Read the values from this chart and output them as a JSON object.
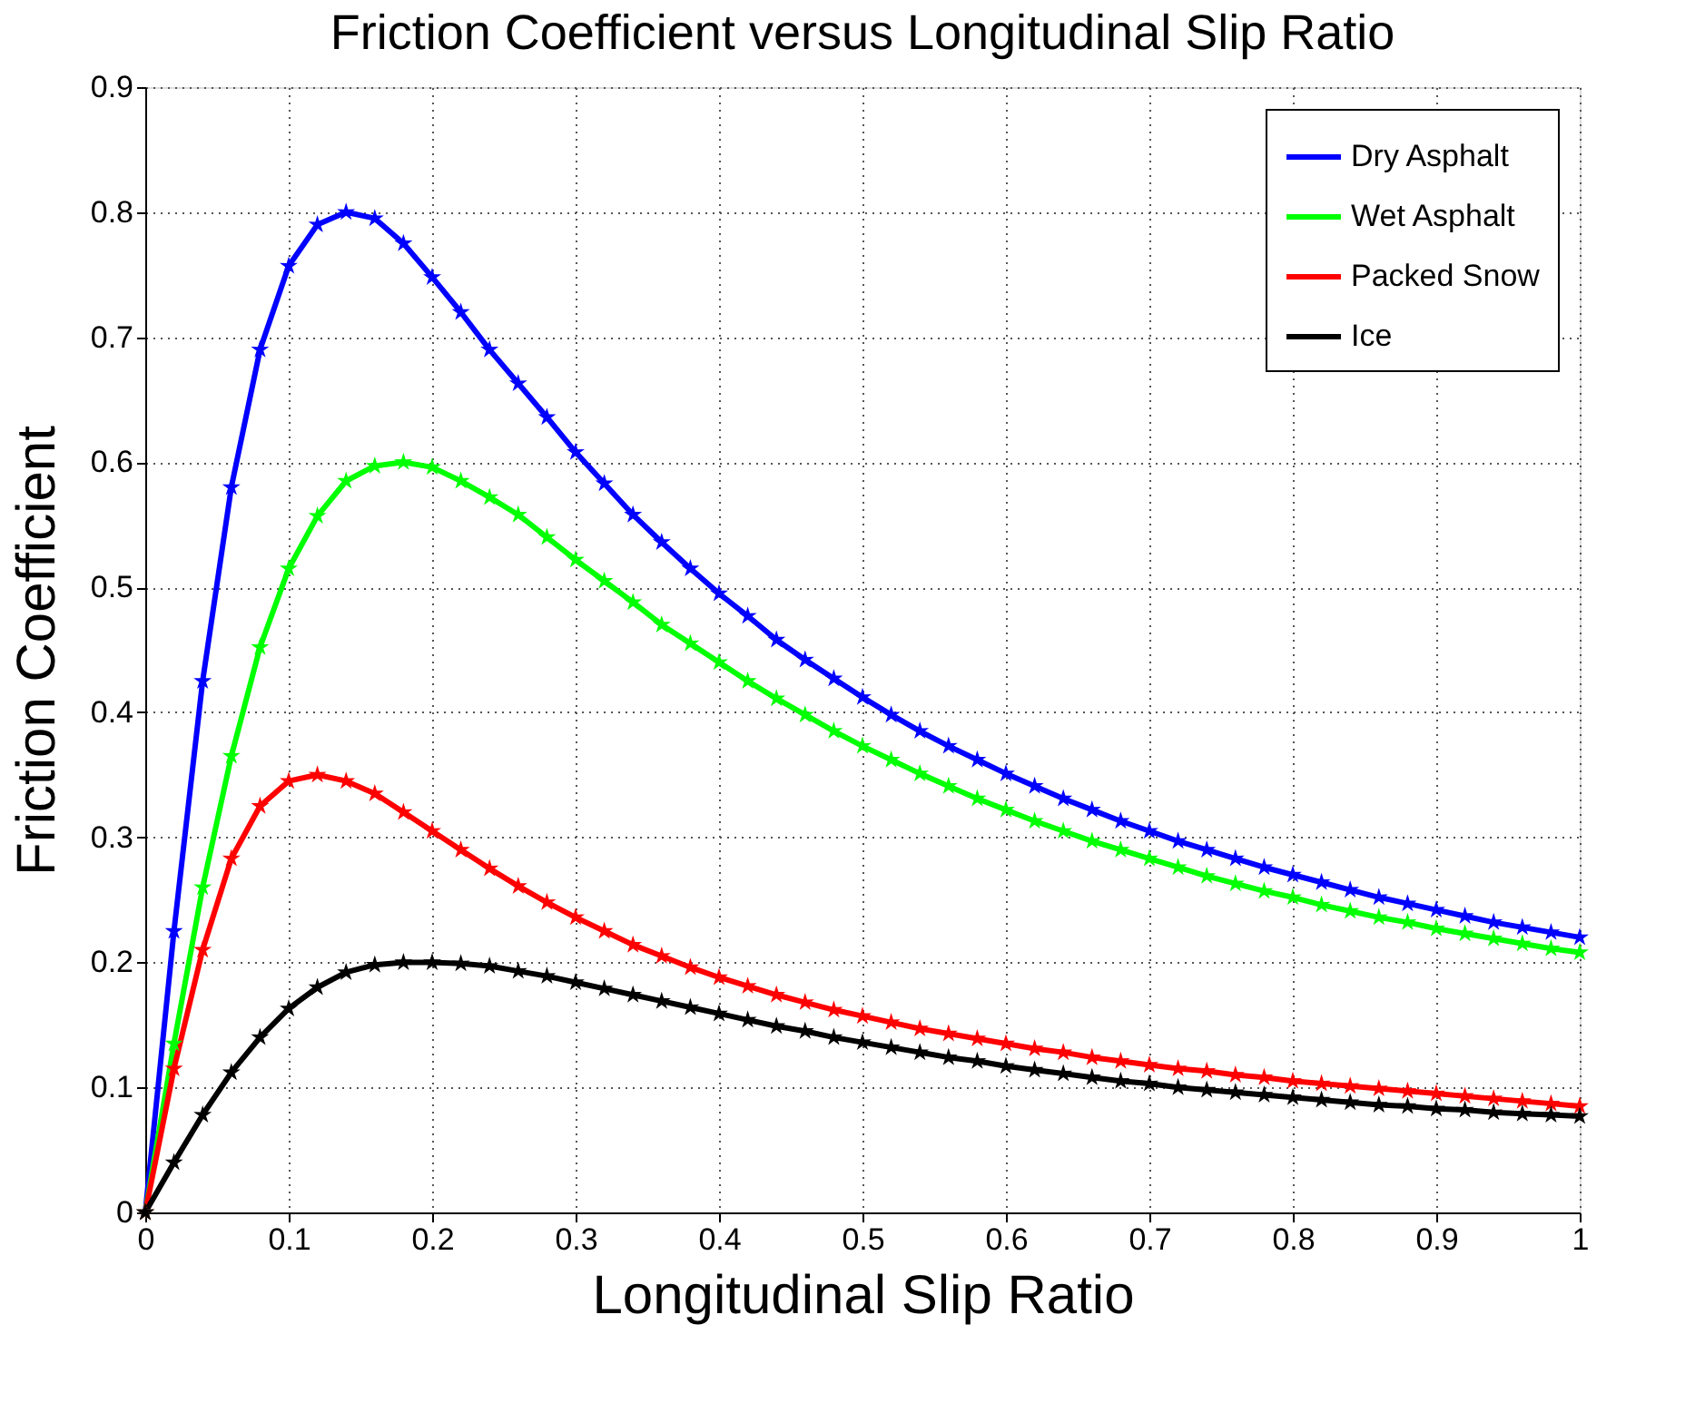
{
  "chart_data": {
    "type": "line",
    "title": "Friction Coefficient versus Longitudinal Slip Ratio",
    "xlabel": "Longitudinal Slip Ratio",
    "ylabel": "Friction Coefficient",
    "x": [
      0,
      0.02,
      0.04,
      0.06,
      0.08,
      0.1,
      0.12,
      0.14,
      0.16,
      0.18,
      0.2,
      0.22,
      0.24,
      0.26,
      0.28,
      0.3,
      0.32,
      0.34,
      0.36,
      0.38,
      0.4,
      0.42,
      0.44,
      0.46,
      0.48,
      0.5,
      0.52,
      0.54,
      0.56,
      0.58,
      0.6,
      0.62,
      0.64,
      0.66,
      0.68,
      0.7,
      0.72,
      0.74,
      0.76,
      0.78,
      0.8,
      0.82,
      0.84,
      0.86,
      0.88,
      0.9,
      0.92,
      0.94,
      0.96,
      0.98,
      1.0
    ],
    "series": [
      {
        "name": "Dry Asphalt",
        "color": "#0000ff",
        "values": [
          0,
          0.225,
          0.425,
          0.58,
          0.69,
          0.757,
          0.79,
          0.8,
          0.795,
          0.775,
          0.748,
          0.72,
          0.69,
          0.663,
          0.636,
          0.608,
          0.583,
          0.558,
          0.536,
          0.515,
          0.495,
          0.477,
          0.458,
          0.442,
          0.427,
          0.412,
          0.398,
          0.385,
          0.373,
          0.362,
          0.351,
          0.341,
          0.331,
          0.322,
          0.313,
          0.305,
          0.297,
          0.29,
          0.283,
          0.276,
          0.27,
          0.264,
          0.258,
          0.252,
          0.247,
          0.242,
          0.237,
          0.232,
          0.228,
          0.224,
          0.22
        ]
      },
      {
        "name": "Wet Asphalt",
        "color": "#00ff00",
        "values": [
          0,
          0.135,
          0.26,
          0.365,
          0.452,
          0.515,
          0.557,
          0.585,
          0.597,
          0.6,
          0.596,
          0.585,
          0.572,
          0.558,
          0.54,
          0.522,
          0.505,
          0.488,
          0.47,
          0.455,
          0.44,
          0.425,
          0.411,
          0.398,
          0.385,
          0.373,
          0.362,
          0.351,
          0.341,
          0.331,
          0.322,
          0.313,
          0.305,
          0.297,
          0.29,
          0.283,
          0.276,
          0.269,
          0.263,
          0.257,
          0.252,
          0.246,
          0.241,
          0.236,
          0.232,
          0.227,
          0.223,
          0.219,
          0.215,
          0.211,
          0.208
        ]
      },
      {
        "name": "Packed Snow",
        "color": "#ff0000",
        "values": [
          0,
          0.115,
          0.21,
          0.283,
          0.325,
          0.345,
          0.35,
          0.345,
          0.335,
          0.32,
          0.305,
          0.29,
          0.275,
          0.261,
          0.248,
          0.236,
          0.225,
          0.214,
          0.205,
          0.196,
          0.188,
          0.181,
          0.174,
          0.168,
          0.162,
          0.157,
          0.152,
          0.147,
          0.143,
          0.139,
          0.135,
          0.131,
          0.128,
          0.124,
          0.121,
          0.118,
          0.115,
          0.113,
          0.11,
          0.108,
          0.105,
          0.103,
          0.101,
          0.099,
          0.097,
          0.095,
          0.093,
          0.091,
          0.089,
          0.087,
          0.085
        ]
      },
      {
        "name": "Ice",
        "color": "#000000",
        "values": [
          0,
          0.04,
          0.078,
          0.112,
          0.14,
          0.163,
          0.18,
          0.192,
          0.198,
          0.2,
          0.2,
          0.199,
          0.197,
          0.193,
          0.189,
          0.184,
          0.179,
          0.174,
          0.169,
          0.164,
          0.159,
          0.154,
          0.149,
          0.145,
          0.14,
          0.136,
          0.132,
          0.128,
          0.124,
          0.121,
          0.117,
          0.114,
          0.111,
          0.108,
          0.105,
          0.103,
          0.1,
          0.098,
          0.096,
          0.094,
          0.092,
          0.09,
          0.088,
          0.086,
          0.085,
          0.083,
          0.082,
          0.08,
          0.079,
          0.078,
          0.077
        ]
      }
    ],
    "xlim": [
      0,
      1
    ],
    "xticks": [
      0,
      0.1,
      0.2,
      0.3,
      0.4,
      0.5,
      0.6,
      0.7,
      0.8,
      0.9,
      1
    ],
    "ylim": [
      0,
      0.9
    ],
    "yticks": [
      0,
      0.1,
      0.2,
      0.3,
      0.4,
      0.5,
      0.6,
      0.7,
      0.8,
      0.9
    ],
    "grid": true,
    "legend": "top right",
    "marker": "star",
    "line_style": "solid"
  }
}
